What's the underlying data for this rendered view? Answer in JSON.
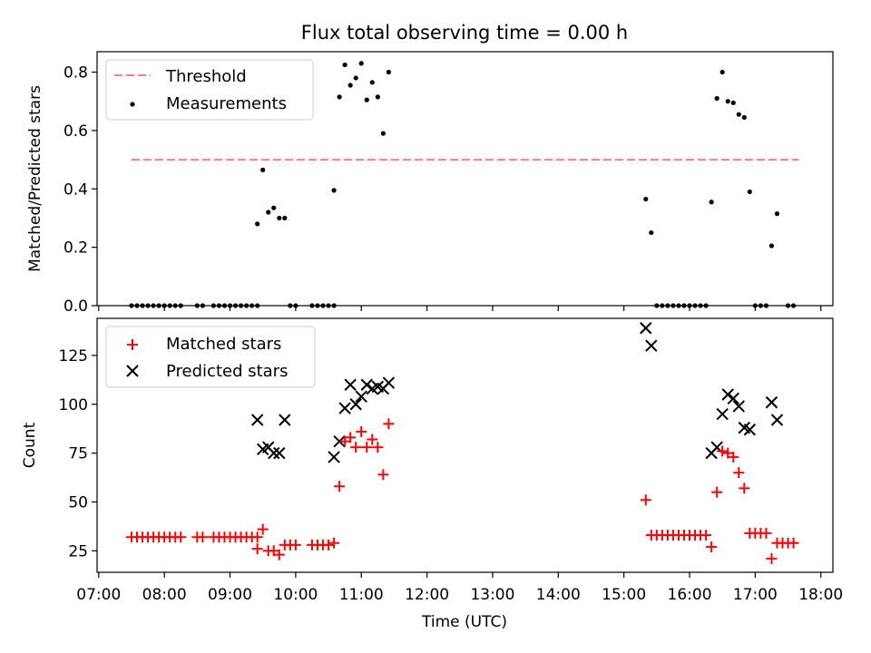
{
  "figure": {
    "title": "Flux total observing time = 0.00 h",
    "xlabel": "Time (UTC)"
  },
  "chart_data": [
    {
      "type": "scatter",
      "panel": "top",
      "ylabel": "Matched/Predicted stars",
      "xlim": [
        "07:00",
        "18:00"
      ],
      "ylim": [
        0,
        0.87
      ],
      "yticks": [
        0.0,
        0.2,
        0.4,
        0.6,
        0.8
      ],
      "ytick_labels": [
        "0.0",
        "0.2",
        "0.4",
        "0.6",
        "0.8"
      ],
      "legend": "top-left",
      "threshold": {
        "name": "Threshold",
        "value": 0.5,
        "x_start": "07:30",
        "x_end": "17:40",
        "color": "#ff7f7f"
      },
      "series": [
        {
          "name": "Measurements",
          "color": "#000000",
          "points": [
            [
              "07:30",
              0
            ],
            [
              "07:35",
              0
            ],
            [
              "07:40",
              0
            ],
            [
              "07:45",
              0
            ],
            [
              "07:50",
              0
            ],
            [
              "07:55",
              0
            ],
            [
              "08:00",
              0
            ],
            [
              "08:05",
              0
            ],
            [
              "08:10",
              0
            ],
            [
              "08:15",
              0
            ],
            [
              "08:30",
              0
            ],
            [
              "08:35",
              0
            ],
            [
              "08:45",
              0
            ],
            [
              "08:50",
              0
            ],
            [
              "08:55",
              0
            ],
            [
              "09:00",
              0
            ],
            [
              "09:05",
              0
            ],
            [
              "09:10",
              0
            ],
            [
              "09:15",
              0
            ],
            [
              "09:20",
              0
            ],
            [
              "09:25",
              0
            ],
            [
              "09:25",
              0.28
            ],
            [
              "09:30",
              0.465
            ],
            [
              "09:35",
              0.32
            ],
            [
              "09:40",
              0.335
            ],
            [
              "09:45",
              0.3
            ],
            [
              "09:50",
              0.3
            ],
            [
              "09:55",
              0
            ],
            [
              "10:00",
              0
            ],
            [
              "10:15",
              0
            ],
            [
              "10:20",
              0
            ],
            [
              "10:25",
              0
            ],
            [
              "10:30",
              0
            ],
            [
              "10:35",
              0
            ],
            [
              "10:35",
              0.395
            ],
            [
              "10:40",
              0.715
            ],
            [
              "10:45",
              0.825
            ],
            [
              "10:50",
              0.755
            ],
            [
              "10:55",
              0.78
            ],
            [
              "11:00",
              0.83
            ],
            [
              "11:05",
              0.705
            ],
            [
              "11:10",
              0.765
            ],
            [
              "11:15",
              0.715
            ],
            [
              "11:20",
              0.59
            ],
            [
              "11:25",
              0.8
            ],
            [
              "15:20",
              0.365
            ],
            [
              "15:25",
              0.25
            ],
            [
              "15:30",
              0
            ],
            [
              "15:35",
              0
            ],
            [
              "15:40",
              0
            ],
            [
              "15:45",
              0
            ],
            [
              "15:50",
              0
            ],
            [
              "15:55",
              0
            ],
            [
              "16:00",
              0
            ],
            [
              "16:05",
              0
            ],
            [
              "16:10",
              0
            ],
            [
              "16:15",
              0
            ],
            [
              "16:20",
              0.355
            ],
            [
              "16:25",
              0.71
            ],
            [
              "16:30",
              0.8
            ],
            [
              "16:35",
              0.7
            ],
            [
              "16:40",
              0.695
            ],
            [
              "16:45",
              0.655
            ],
            [
              "16:50",
              0.645
            ],
            [
              "16:55",
              0.39
            ],
            [
              "17:00",
              0
            ],
            [
              "17:05",
              0
            ],
            [
              "17:10",
              0
            ],
            [
              "17:15",
              0.205
            ],
            [
              "17:20",
              0.315
            ],
            [
              "17:30",
              0
            ],
            [
              "17:35",
              0
            ]
          ]
        }
      ]
    },
    {
      "type": "scatter",
      "panel": "bottom",
      "ylabel": "Count",
      "xlabel": "Time (UTC)",
      "xlim": [
        "07:00",
        "18:00"
      ],
      "ylim": [
        14,
        144
      ],
      "yticks": [
        25,
        50,
        75,
        100,
        125
      ],
      "ytick_labels": [
        "25",
        "50",
        "75",
        "100",
        "125"
      ],
      "xticks": [
        "07:00",
        "08:00",
        "09:00",
        "10:00",
        "11:00",
        "12:00",
        "13:00",
        "14:00",
        "15:00",
        "16:00",
        "17:00",
        "18:00"
      ],
      "legend": "top-left",
      "series": [
        {
          "name": "Matched stars",
          "color": "#ff0000",
          "marker": "+",
          "points": [
            [
              "07:30",
              32
            ],
            [
              "07:35",
              32
            ],
            [
              "07:40",
              32
            ],
            [
              "07:45",
              32
            ],
            [
              "07:50",
              32
            ],
            [
              "07:55",
              32
            ],
            [
              "08:00",
              32
            ],
            [
              "08:05",
              32
            ],
            [
              "08:10",
              32
            ],
            [
              "08:15",
              32
            ],
            [
              "08:30",
              32
            ],
            [
              "08:35",
              32
            ],
            [
              "08:45",
              32
            ],
            [
              "08:50",
              32
            ],
            [
              "08:55",
              32
            ],
            [
              "09:00",
              32
            ],
            [
              "09:05",
              32
            ],
            [
              "09:10",
              32
            ],
            [
              "09:15",
              32
            ],
            [
              "09:20",
              32
            ],
            [
              "09:25",
              32
            ],
            [
              "09:25",
              26
            ],
            [
              "09:30",
              36
            ],
            [
              "09:35",
              25
            ],
            [
              "09:40",
              25
            ],
            [
              "09:45",
              23
            ],
            [
              "09:50",
              28
            ],
            [
              "09:55",
              28
            ],
            [
              "10:00",
              28
            ],
            [
              "10:15",
              28
            ],
            [
              "10:20",
              28
            ],
            [
              "10:25",
              28
            ],
            [
              "10:30",
              28
            ],
            [
              "10:35",
              29
            ],
            [
              "10:40",
              58
            ],
            [
              "10:45",
              81
            ],
            [
              "10:50",
              83
            ],
            [
              "10:55",
              78
            ],
            [
              "11:00",
              86
            ],
            [
              "11:05",
              78
            ],
            [
              "11:10",
              82
            ],
            [
              "11:15",
              78
            ],
            [
              "11:20",
              64
            ],
            [
              "11:25",
              90
            ],
            [
              "15:20",
              51
            ],
            [
              "15:25",
              33
            ],
            [
              "15:30",
              33
            ],
            [
              "15:35",
              33
            ],
            [
              "15:40",
              33
            ],
            [
              "15:45",
              33
            ],
            [
              "15:50",
              33
            ],
            [
              "15:55",
              33
            ],
            [
              "16:00",
              33
            ],
            [
              "16:05",
              33
            ],
            [
              "16:10",
              33
            ],
            [
              "16:15",
              33
            ],
            [
              "16:20",
              27
            ],
            [
              "16:25",
              55
            ],
            [
              "16:30",
              76
            ],
            [
              "16:35",
              75
            ],
            [
              "16:40",
              73
            ],
            [
              "16:45",
              65
            ],
            [
              "16:50",
              57
            ],
            [
              "16:55",
              34
            ],
            [
              "17:00",
              34
            ],
            [
              "17:05",
              34
            ],
            [
              "17:10",
              34
            ],
            [
              "17:15",
              21
            ],
            [
              "17:20",
              29
            ],
            [
              "17:25",
              29
            ],
            [
              "17:30",
              29
            ],
            [
              "17:35",
              29
            ]
          ]
        },
        {
          "name": "Predicted stars",
          "color": "#000000",
          "marker": "x",
          "points": [
            [
              "09:25",
              92
            ],
            [
              "09:30",
              77
            ],
            [
              "09:35",
              78
            ],
            [
              "09:40",
              75
            ],
            [
              "09:45",
              75
            ],
            [
              "09:50",
              92
            ],
            [
              "10:35",
              73
            ],
            [
              "10:40",
              81
            ],
            [
              "10:45",
              98
            ],
            [
              "10:50",
              110
            ],
            [
              "10:55",
              100
            ],
            [
              "11:00",
              104
            ],
            [
              "11:05",
              110
            ],
            [
              "11:10",
              108
            ],
            [
              "11:15",
              109
            ],
            [
              "11:20",
              108
            ],
            [
              "11:25",
              111
            ],
            [
              "15:20",
              139
            ],
            [
              "15:25",
              130
            ],
            [
              "16:20",
              75
            ],
            [
              "16:25",
              78
            ],
            [
              "16:30",
              95
            ],
            [
              "16:35",
              105
            ],
            [
              "16:40",
              103
            ],
            [
              "16:45",
              99
            ],
            [
              "16:50",
              88
            ],
            [
              "16:55",
              87
            ],
            [
              "17:15",
              101
            ],
            [
              "17:20",
              92
            ]
          ]
        }
      ]
    }
  ]
}
